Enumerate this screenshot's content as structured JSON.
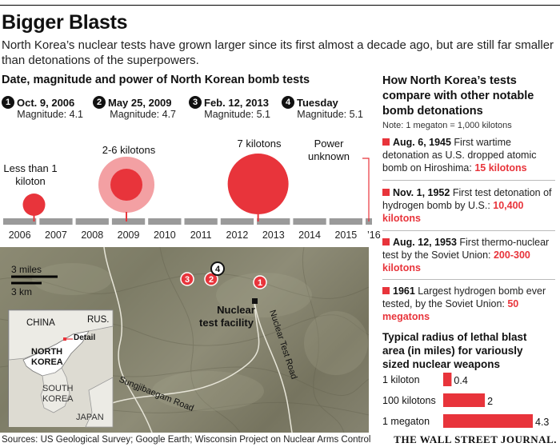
{
  "title": "Bigger Blasts",
  "subtitle": "North Korea’s nuclear tests have grown larger since its first almost a decade ago, but are still far smaller than detonations of the superpowers.",
  "left_section_title": "Date, magnitude and power of North Korean bomb tests",
  "events": [
    {
      "num": "1",
      "date": "Oct. 9, 2006",
      "magnitude": "Magnitude: 4.1",
      "power_label": "Less than 1 kiloton"
    },
    {
      "num": "2",
      "date": "May 25, 2009",
      "magnitude": "Magnitude: 4.7",
      "power_label": "2-6 kilotons"
    },
    {
      "num": "3",
      "date": "Feb. 12, 2013",
      "magnitude": "Magnitude: 5.1",
      "power_label": "7 kilotons"
    },
    {
      "num": "4",
      "date": "Tuesday",
      "magnitude": "Magnitude: 5.1",
      "power_label": "Power unknown"
    }
  ],
  "timeline_years": [
    "2006",
    "2007",
    "2008",
    "2009",
    "2010",
    "2011",
    "2012",
    "2013",
    "2014",
    "2015",
    "’16"
  ],
  "map": {
    "scale_miles": "3 miles",
    "scale_km": "3 km",
    "facility_label": "Nuclear test facility",
    "road1": "Nuclear Test Road",
    "road2": "Sungjibaegam Road",
    "markers": [
      "3",
      "2",
      "4",
      "1"
    ],
    "inset": {
      "china": "CHINA",
      "rus": "RUS.",
      "detail": "Detail",
      "north_korea": "NORTH KOREA",
      "south_korea": "SOUTH KOREA",
      "japan": "JAPAN"
    }
  },
  "right_section_title": "How North Korea’s tests compare with other notable bomb detonations",
  "note": "Note: 1 megaton = 1,000 kilotons",
  "facts": [
    {
      "date": "Aug. 6, 1945",
      "text": " First wartime detonation as U.S. dropped atomic bomb on Hiroshima: ",
      "power": "15 kilotons"
    },
    {
      "date": "Nov. 1, 1952",
      "text": " First test detonation of hydrogen bomb by U.S.: ",
      "power": "10,400 kilotons"
    },
    {
      "date": "Aug. 12, 1953",
      "text": " First thermo-nuclear test by the Soviet Union: ",
      "power": "200-300 kilotons"
    },
    {
      "date": "1961",
      "text": " Largest hydrogen bomb ever tested, by the Soviet Union: ",
      "power": "50 megatons"
    }
  ],
  "radius_title": "Typical radius of lethal blast area (in miles) for variously sized nuclear weapons",
  "chart_data": {
    "type": "bar",
    "orientation": "horizontal",
    "title": "Typical radius of lethal blast area (in miles) for variously sized nuclear weapons",
    "categories": [
      "1 kiloton",
      "100 kilotons",
      "1 megaton"
    ],
    "values": [
      0.4,
      2,
      4.3
    ],
    "value_labels": [
      "0.4",
      "2",
      "4.3"
    ],
    "xlim": [
      0,
      4.3
    ],
    "color": "#e8343b"
  },
  "bubbles": [
    {
      "year": 2006.85,
      "radius_kind": "single",
      "value_label": "Less than 1 kiloton"
    },
    {
      "year": 2009.4,
      "radius_kind": "range",
      "value_label": "2-6 kilotons"
    },
    {
      "year": 2013.1,
      "radius_kind": "single",
      "value_label": "7 kilotons"
    }
  ],
  "colors": {
    "accent": "#e8343b",
    "halo": "#f3a0a3",
    "timeline": "#9a9a9a"
  },
  "source": "Sources: US Geological Survey; Google Earth; Wisconsin Project on Nuclear Arms Control",
  "credit": "THE WALL STREET JOURNAL."
}
